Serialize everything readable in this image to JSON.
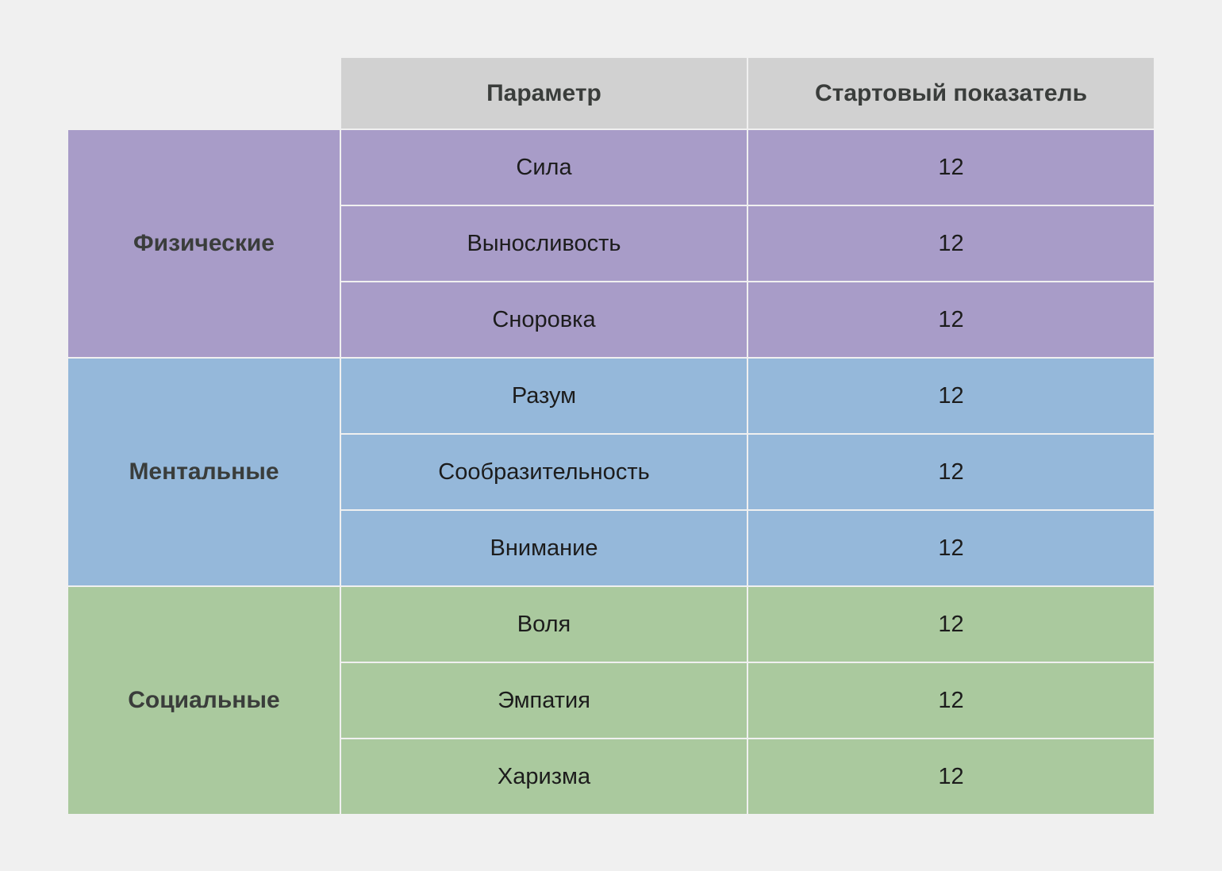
{
  "header": {
    "parameter": "Параметр",
    "start_value": "Стартовый показатель"
  },
  "colors": {
    "header_bg": "#d1d1d1",
    "physical_bg": "#a89cc8",
    "mental_bg": "#95b8da",
    "social_bg": "#aac99e",
    "page_bg": "#f0f0f0"
  },
  "groups": [
    {
      "label": "Физические",
      "rows": [
        {
          "param": "Сила",
          "value": "12"
        },
        {
          "param": "Выносливость",
          "value": "12"
        },
        {
          "param": "Сноровка",
          "value": "12"
        }
      ]
    },
    {
      "label": "Ментальные",
      "rows": [
        {
          "param": "Разум",
          "value": "12"
        },
        {
          "param": "Сообразительность",
          "value": "12"
        },
        {
          "param": "Внимание",
          "value": "12"
        }
      ]
    },
    {
      "label": "Социальные",
      "rows": [
        {
          "param": "Воля",
          "value": "12"
        },
        {
          "param": "Эмпатия",
          "value": "12"
        },
        {
          "param": "Харизма",
          "value": "12"
        }
      ]
    }
  ]
}
